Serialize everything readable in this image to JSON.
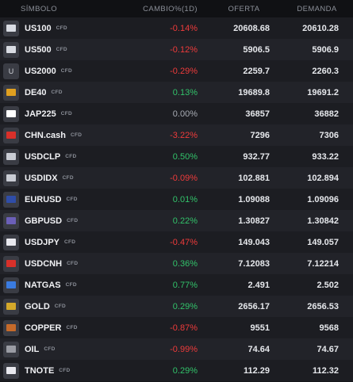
{
  "headers": {
    "symbol": "SÍMBOLO",
    "change": "CAMBIO%(1D)",
    "bid": "OFERTA",
    "ask": "DEMANDA"
  },
  "rows": [
    {
      "name": "US100",
      "tag": "CFD",
      "change": "-0.14%",
      "dir": "neg",
      "bid": "20608.68",
      "ask": "20610.28",
      "icon": "us-flag-icon",
      "glyph": "",
      "color": "#d9dce3"
    },
    {
      "name": "US500",
      "tag": "CFD",
      "change": "-0.12%",
      "dir": "neg",
      "bid": "5906.5",
      "ask": "5906.9",
      "icon": "us-flag-icon",
      "glyph": "",
      "color": "#d9dce3"
    },
    {
      "name": "US2000",
      "tag": "CFD",
      "change": "-0.29%",
      "dir": "neg",
      "bid": "2259.7",
      "ask": "2260.3",
      "icon": "letter-u-icon",
      "glyph": "U",
      "color": ""
    },
    {
      "name": "DE40",
      "tag": "CFD",
      "change": "0.13%",
      "dir": "pos",
      "bid": "19689.8",
      "ask": "19691.2",
      "icon": "germany-flag-icon",
      "glyph": "",
      "color": "#e0a020"
    },
    {
      "name": "JAP225",
      "tag": "CFD",
      "change": "0.00%",
      "dir": "neu",
      "bid": "36857",
      "ask": "36882",
      "icon": "japan-flag-icon",
      "glyph": "",
      "color": "#ffffff"
    },
    {
      "name": "CHN.cash",
      "tag": "CFD",
      "change": "-3.22%",
      "dir": "neg",
      "bid": "7296",
      "ask": "7306",
      "icon": "china-flag-icon",
      "glyph": "",
      "color": "#d8302a"
    },
    {
      "name": "USDCLP",
      "tag": "CFD",
      "change": "0.50%",
      "dir": "pos",
      "bid": "932.77",
      "ask": "933.22",
      "icon": "us-chile-flags-icon",
      "glyph": "",
      "color": "#c9ccd4"
    },
    {
      "name": "USDIDX",
      "tag": "CFD",
      "change": "-0.09%",
      "dir": "neg",
      "bid": "102.881",
      "ask": "102.894",
      "icon": "us-flag-icon",
      "glyph": "",
      "color": "#c9ccd4"
    },
    {
      "name": "EURUSD",
      "tag": "CFD",
      "change": "0.01%",
      "dir": "pos",
      "bid": "1.09088",
      "ask": "1.09096",
      "icon": "eu-us-flags-icon",
      "glyph": "",
      "color": "#2f4da8"
    },
    {
      "name": "GBPUSD",
      "tag": "CFD",
      "change": "0.22%",
      "dir": "pos",
      "bid": "1.30827",
      "ask": "1.30842",
      "icon": "uk-us-flags-icon",
      "glyph": "",
      "color": "#6b5fb8"
    },
    {
      "name": "USDJPY",
      "tag": "CFD",
      "change": "-0.47%",
      "dir": "neg",
      "bid": "149.043",
      "ask": "149.057",
      "icon": "us-japan-flags-icon",
      "glyph": "",
      "color": "#e8e8ee"
    },
    {
      "name": "USDCNH",
      "tag": "CFD",
      "change": "0.36%",
      "dir": "pos",
      "bid": "7.12083",
      "ask": "7.12214",
      "icon": "us-china-flags-icon",
      "glyph": "",
      "color": "#d8302a"
    },
    {
      "name": "NATGAS",
      "tag": "CFD",
      "change": "0.77%",
      "dir": "pos",
      "bid": "2.491",
      "ask": "2.502",
      "icon": "flame-icon",
      "glyph": "",
      "color": "#3a7be0"
    },
    {
      "name": "GOLD",
      "tag": "CFD",
      "change": "0.29%",
      "dir": "pos",
      "bid": "2656.17",
      "ask": "2656.53",
      "icon": "gold-au-icon",
      "glyph": "",
      "color": "#d4a82a"
    },
    {
      "name": "COPPER",
      "tag": "CFD",
      "change": "-0.87%",
      "dir": "neg",
      "bid": "9551",
      "ask": "9568",
      "icon": "copper-cu-icon",
      "glyph": "",
      "color": "#c56a2a"
    },
    {
      "name": "OIL",
      "tag": "CFD",
      "change": "-0.99%",
      "dir": "neg",
      "bid": "74.64",
      "ask": "74.67",
      "icon": "oil-barrel-icon",
      "glyph": "",
      "color": "#9a9ca4"
    },
    {
      "name": "TNOTE",
      "tag": "CFD",
      "change": "0.29%",
      "dir": "pos",
      "bid": "112.29",
      "ask": "112.32",
      "icon": "treasury-note-icon",
      "glyph": "",
      "color": "#e8e8ee"
    }
  ]
}
